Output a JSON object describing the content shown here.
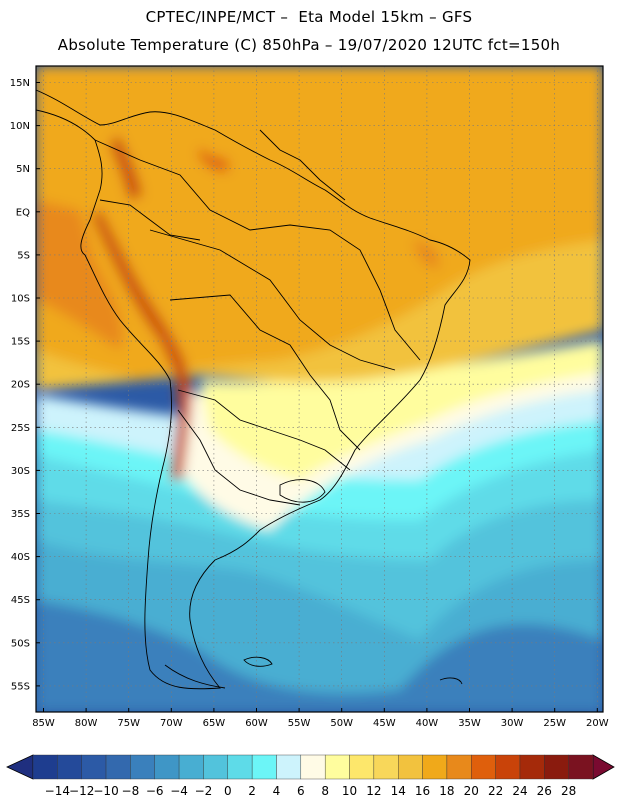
{
  "header": {
    "line1": "CPTEC/INPE/MCT –  Eta Model 15km – GFS",
    "line2": "Absolute Temperature (C) 850hPa – 19/07/2020 12UTC fct=150h"
  },
  "axes": {
    "lat_labels": [
      "15N",
      "10N",
      "5N",
      "EQ",
      "5S",
      "10S",
      "15S",
      "20S",
      "25S",
      "30S",
      "35S",
      "40S",
      "45S",
      "50S",
      "55S"
    ],
    "lon_labels": [
      "85W",
      "80W",
      "75W",
      "70W",
      "65W",
      "60W",
      "55W",
      "50W",
      "45W",
      "40W",
      "35W",
      "30W",
      "25W",
      "20W"
    ]
  },
  "colorbar": {
    "labels": [
      "-14",
      "-12",
      "-10",
      "-8",
      "-6",
      "-4",
      "-2",
      "0",
      "2",
      "4",
      "6",
      "8",
      "10",
      "12",
      "14",
      "16",
      "18",
      "20",
      "22",
      "24",
      "26",
      "28"
    ],
    "colors": [
      "#1e3d8f",
      "#244a9a",
      "#2c5aa6",
      "#3369ae",
      "#3a80bc",
      "#3f96c6",
      "#48aed2",
      "#52c3dc",
      "#5edbe8",
      "#6cf5f7",
      "#cdf3fc",
      "#fffbe6",
      "#fffd9e",
      "#fde76b",
      "#f8d75a",
      "#f2c23e",
      "#f0a91a",
      "#e8891b",
      "#df5f0c",
      "#c94309",
      "#a52a0a",
      "#8a1b0e",
      "#7a1220"
    ],
    "under_color": "#1f2f7f",
    "over_color": "#7a0a30"
  },
  "colors": {
    "warm_land": "#f0a91a",
    "tropical_ocean": "#f2c23e",
    "andes": "#c94309",
    "mid_ocean": "#5edbe8",
    "cold_ocean": "#3f96c6",
    "border_line": "#000000"
  }
}
